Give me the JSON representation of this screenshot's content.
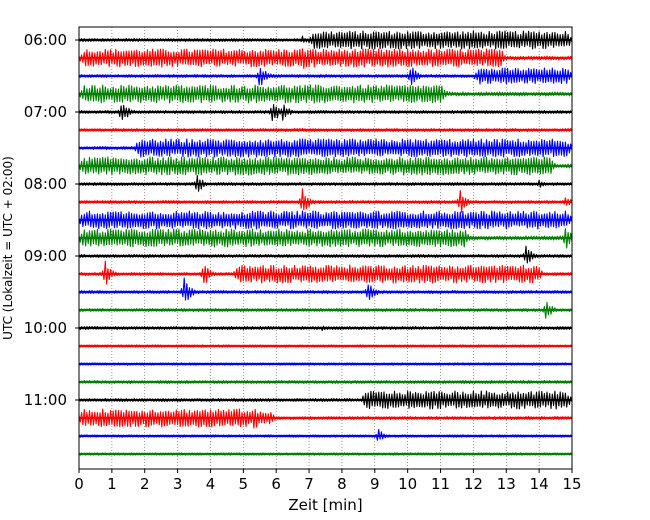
{
  "chart_data": {
    "type": "line",
    "title": "",
    "xlabel": "Zeit  [min]",
    "ylabel": "UTC (Lokalzeit = UTC + 02:00)",
    "xlim": [
      0,
      15
    ],
    "x_ticks": [
      "0",
      "1",
      "2",
      "3",
      "4",
      "5",
      "6",
      "7",
      "8",
      "9",
      "10",
      "11",
      "12",
      "13",
      "14",
      "15"
    ],
    "y_ticks": [
      {
        "label": "06:00",
        "row": 0
      },
      {
        "label": "07:00",
        "row": 4
      },
      {
        "label": "08:00",
        "row": 8
      },
      {
        "label": "09:00",
        "row": 12
      },
      {
        "label": "10:00",
        "row": 16
      },
      {
        "label": "11:00",
        "row": 20
      }
    ],
    "grid": {
      "vertical": true
    },
    "row_colors": [
      "#000000",
      "#ff0000",
      "#0000ff",
      "#008000"
    ],
    "row_minutes": 15,
    "rows": [
      {
        "start": "06:00",
        "noise": 1.5,
        "segments": [
          [
            7.0,
            15,
            9
          ]
        ],
        "events": [
          [
            6.8,
            4
          ]
        ]
      },
      {
        "start": "06:15",
        "noise": 2,
        "segments": [
          [
            0,
            13,
            9
          ],
          [
            13,
            15,
            2
          ]
        ],
        "events": [
          [
            6.8,
            14
          ]
        ]
      },
      {
        "start": "06:30",
        "noise": 1.5,
        "segments": [
          [
            12,
            15,
            8
          ]
        ],
        "events": [
          [
            5.5,
            13
          ],
          [
            10.1,
            12
          ]
        ]
      },
      {
        "start": "06:45",
        "noise": 2,
        "segments": [
          [
            0,
            11.2,
            9
          ]
        ],
        "events": []
      },
      {
        "start": "07:00",
        "noise": 1.5,
        "segments": [],
        "events": [
          [
            1.3,
            14
          ],
          [
            5.9,
            13
          ],
          [
            6.2,
            10
          ]
        ]
      },
      {
        "start": "07:15",
        "noise": 1.5,
        "segments": [],
        "events": []
      },
      {
        "start": "07:30",
        "noise": 1.5,
        "segments": [
          [
            1.7,
            15,
            9
          ]
        ],
        "events": [
          [
            7.7,
            5
          ]
        ]
      },
      {
        "start": "07:45",
        "noise": 2,
        "segments": [
          [
            0,
            14.5,
            9
          ]
        ],
        "events": []
      },
      {
        "start": "08:00",
        "noise": 1.5,
        "segments": [],
        "events": [
          [
            3.6,
            10
          ],
          [
            14.0,
            4
          ]
        ]
      },
      {
        "start": "08:15",
        "noise": 1.5,
        "segments": [],
        "events": [
          [
            6.8,
            14
          ],
          [
            11.6,
            13
          ],
          [
            14.8,
            6
          ]
        ]
      },
      {
        "start": "08:30",
        "noise": 2,
        "segments": [
          [
            0,
            15,
            9
          ]
        ],
        "events": [
          [
            5.1,
            5
          ]
        ]
      },
      {
        "start": "08:45",
        "noise": 2,
        "segments": [
          [
            0,
            11.9,
            9
          ]
        ],
        "events": [
          [
            4.6,
            6
          ],
          [
            14.8,
            13
          ]
        ]
      },
      {
        "start": "09:00",
        "noise": 1.5,
        "segments": [],
        "events": [
          [
            13.6,
            11
          ]
        ]
      },
      {
        "start": "09:15",
        "noise": 1.5,
        "segments": [
          [
            4.7,
            14.1,
            9
          ]
        ],
        "events": [
          [
            0.8,
            14
          ],
          [
            3.8,
            13
          ]
        ]
      },
      {
        "start": "09:30",
        "noise": 1.5,
        "segments": [],
        "events": [
          [
            3.2,
            15
          ],
          [
            8.8,
            12
          ]
        ]
      },
      {
        "start": "09:45",
        "noise": 1.5,
        "segments": [],
        "events": [
          [
            14.2,
            11
          ]
        ]
      },
      {
        "start": "10:00",
        "noise": 1.5,
        "segments": [],
        "events": [
          [
            7.4,
            3
          ]
        ]
      },
      {
        "start": "10:15",
        "noise": 1.2,
        "segments": [],
        "events": []
      },
      {
        "start": "10:30",
        "noise": 1.2,
        "segments": [],
        "events": []
      },
      {
        "start": "10:45",
        "noise": 1.5,
        "segments": [],
        "events": []
      },
      {
        "start": "11:00",
        "noise": 1.5,
        "segments": [
          [
            8.6,
            15,
            9
          ]
        ],
        "events": []
      },
      {
        "start": "11:15",
        "noise": 1.5,
        "segments": [
          [
            0,
            5.3,
            9
          ],
          [
            5.3,
            6.0,
            6
          ]
        ],
        "events": [
          [
            1.0,
            11
          ],
          [
            5.3,
            16
          ]
        ]
      },
      {
        "start": "11:30",
        "noise": 1.2,
        "segments": [],
        "events": [
          [
            9.1,
            8
          ]
        ]
      },
      {
        "start": "11:45",
        "noise": 1.2,
        "segments": [],
        "events": []
      }
    ]
  }
}
